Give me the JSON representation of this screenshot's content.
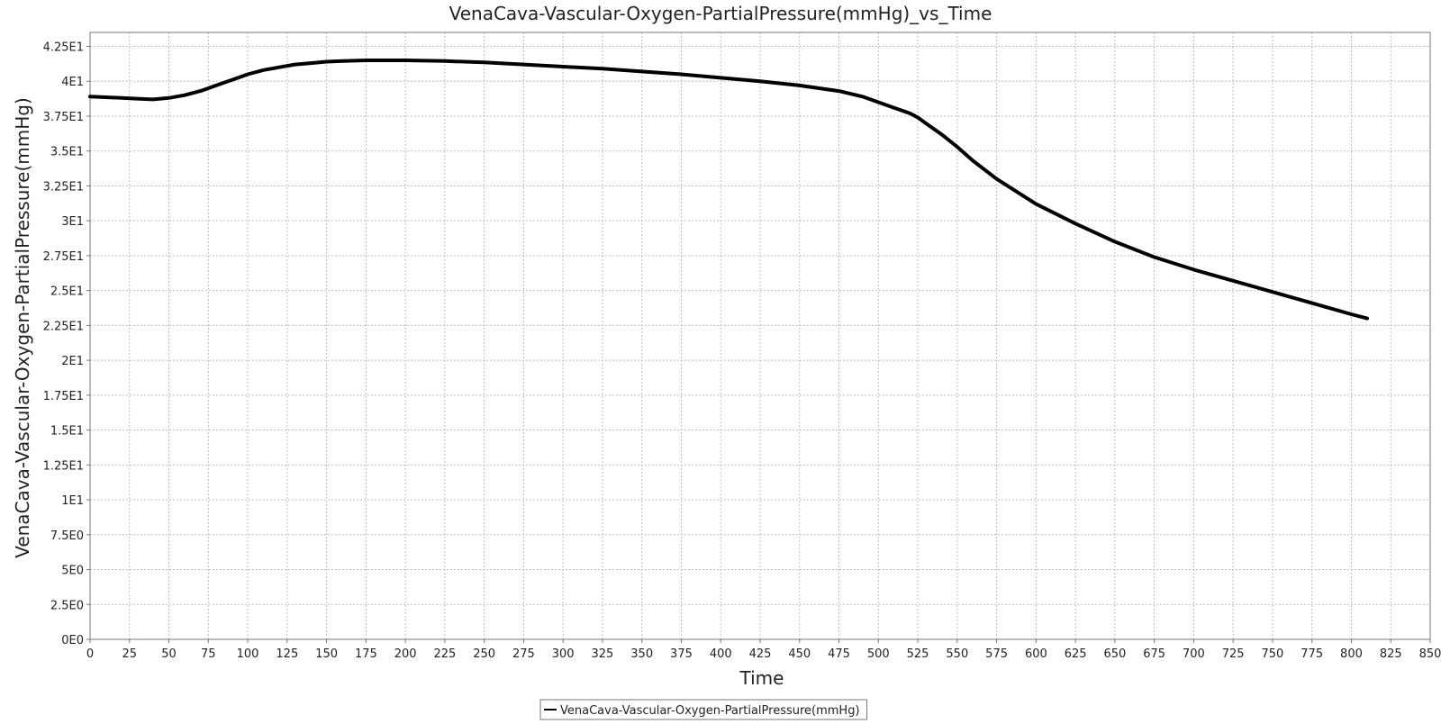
{
  "chart_data": {
    "type": "line",
    "title": "VenaCava-Vascular-Oxygen-PartialPressure(mmHg)_vs_Time",
    "xlabel": "Time",
    "ylabel": "VenaCava-Vascular-Oxygen-PartialPressure(mmHg)",
    "xlim": [
      0,
      850
    ],
    "ylim": [
      0,
      43.5
    ],
    "x_ticks": [
      0,
      25,
      50,
      75,
      100,
      125,
      150,
      175,
      200,
      225,
      250,
      275,
      300,
      325,
      350,
      375,
      400,
      425,
      450,
      475,
      500,
      525,
      550,
      575,
      600,
      625,
      650,
      675,
      700,
      725,
      750,
      775,
      800,
      825,
      850
    ],
    "x_tick_labels": [
      "0",
      "25",
      "50",
      "75",
      "100",
      "125",
      "150",
      "175",
      "200",
      "225",
      "250",
      "275",
      "300",
      "325",
      "350",
      "375",
      "400",
      "425",
      "450",
      "475",
      "500",
      "525",
      "550",
      "575",
      "600",
      "625",
      "650",
      "675",
      "700",
      "725",
      "750",
      "775",
      "800",
      "825",
      "850"
    ],
    "y_ticks": [
      0,
      2.5,
      5,
      7.5,
      10,
      12.5,
      15,
      17.5,
      20,
      22.5,
      25,
      27.5,
      30,
      32.5,
      35,
      37.5,
      40,
      42.5
    ],
    "y_tick_labels": [
      "0E0",
      "2.5E0",
      "5E0",
      "7.5E0",
      "1E1",
      "1.25E1",
      "1.5E1",
      "1.75E1",
      "2E1",
      "2.25E1",
      "2.5E1",
      "2.75E1",
      "3E1",
      "3.25E1",
      "3.5E1",
      "3.75E1",
      "4E1",
      "4.25E1"
    ],
    "grid": true,
    "legend_position": "bottom-center",
    "series": [
      {
        "name": "VenaCava-Vascular-Oxygen-PartialPressure(mmHg)",
        "color": "#000000",
        "x": [
          0,
          10,
          20,
          30,
          40,
          50,
          60,
          70,
          80,
          90,
          100,
          110,
          120,
          130,
          140,
          150,
          160,
          175,
          200,
          225,
          250,
          275,
          300,
          325,
          350,
          375,
          400,
          425,
          450,
          475,
          490,
          500,
          510,
          520,
          525,
          530,
          540,
          550,
          560,
          575,
          600,
          625,
          650,
          675,
          700,
          725,
          750,
          775,
          800,
          810
        ],
        "y": [
          38.9,
          38.85,
          38.8,
          38.75,
          38.7,
          38.8,
          39.0,
          39.3,
          39.7,
          40.1,
          40.5,
          40.8,
          41.0,
          41.2,
          41.3,
          41.4,
          41.45,
          41.5,
          41.5,
          41.45,
          41.35,
          41.2,
          41.05,
          40.9,
          40.7,
          40.5,
          40.25,
          40.0,
          39.7,
          39.3,
          38.9,
          38.5,
          38.1,
          37.7,
          37.4,
          37.0,
          36.2,
          35.3,
          34.3,
          33.0,
          31.2,
          29.8,
          28.5,
          27.4,
          26.5,
          25.7,
          24.9,
          24.1,
          23.3,
          23.0
        ]
      }
    ]
  }
}
